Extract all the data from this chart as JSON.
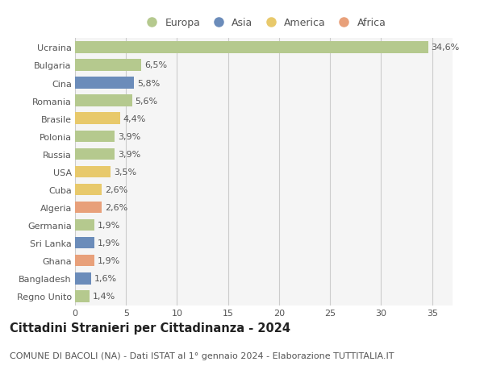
{
  "categories": [
    "Ucraina",
    "Bulgaria",
    "Cina",
    "Romania",
    "Brasile",
    "Polonia",
    "Russia",
    "USA",
    "Cuba",
    "Algeria",
    "Germania",
    "Sri Lanka",
    "Ghana",
    "Bangladesh",
    "Regno Unito"
  ],
  "values": [
    34.6,
    6.5,
    5.8,
    5.6,
    4.4,
    3.9,
    3.9,
    3.5,
    2.6,
    2.6,
    1.9,
    1.9,
    1.9,
    1.6,
    1.4
  ],
  "labels": [
    "34,6%",
    "6,5%",
    "5,8%",
    "5,6%",
    "4,4%",
    "3,9%",
    "3,9%",
    "3,5%",
    "2,6%",
    "2,6%",
    "1,9%",
    "1,9%",
    "1,9%",
    "1,6%",
    "1,4%"
  ],
  "continents": [
    "Europa",
    "Europa",
    "Asia",
    "Europa",
    "America",
    "Europa",
    "Europa",
    "America",
    "America",
    "Africa",
    "Europa",
    "Asia",
    "Africa",
    "Asia",
    "Europa"
  ],
  "continent_colors": {
    "Europa": "#b5c98e",
    "Asia": "#6b8cba",
    "America": "#e8c96b",
    "Africa": "#e8a07a"
  },
  "legend_order": [
    "Europa",
    "Asia",
    "America",
    "Africa"
  ],
  "title": "Cittadini Stranieri per Cittadinanza - 2024",
  "subtitle": "COMUNE DI BACOLI (NA) - Dati ISTAT al 1° gennaio 2024 - Elaborazione TUTTITALIA.IT",
  "xlim": [
    0,
    37
  ],
  "xticks": [
    0,
    5,
    10,
    15,
    20,
    25,
    30,
    35
  ],
  "background_color": "#ffffff",
  "plot_bg_color": "#f5f5f5",
  "grid_color": "#cccccc",
  "bar_height": 0.65,
  "label_fontsize": 8,
  "tick_fontsize": 8,
  "title_fontsize": 10.5,
  "subtitle_fontsize": 8,
  "legend_fontsize": 9
}
